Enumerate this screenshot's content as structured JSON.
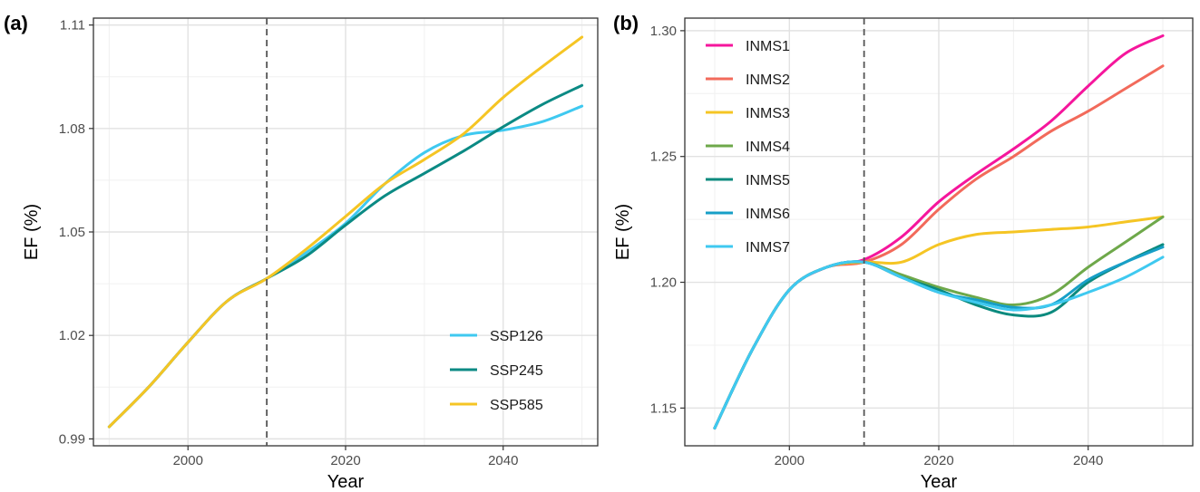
{
  "chart_data": [
    {
      "panel": "(a)",
      "type": "line",
      "xlabel": "Year",
      "ylabel": "EF (%)",
      "xlim": [
        1988,
        2052
      ],
      "ylim": [
        0.988,
        1.112
      ],
      "xticks": [
        2000,
        2020,
        2040
      ],
      "xtick_labels": [
        "2000",
        "2020",
        "2040"
      ],
      "yticks": [
        0.99,
        1.02,
        1.05,
        1.08,
        1.11
      ],
      "ytick_labels": [
        "0.99",
        "1.02",
        "1.05",
        "1.08",
        "1.11"
      ],
      "grid": true,
      "vline_x": 2010,
      "legend_position": "bottom-right",
      "series": [
        {
          "name": "SSP126",
          "color": "#3fc9f0",
          "x": [
            1990,
            1995,
            2000,
            2005,
            2010,
            2015,
            2020,
            2025,
            2030,
            2035,
            2040,
            2045,
            2050
          ],
          "y": [
            0.9935,
            1.005,
            1.018,
            1.03,
            1.0365,
            1.044,
            1.0525,
            1.064,
            1.073,
            1.078,
            1.0795,
            1.082,
            1.0865
          ]
        },
        {
          "name": "SSP245",
          "color": "#0b8a84",
          "x": [
            1990,
            1995,
            2000,
            2005,
            2010,
            2015,
            2020,
            2025,
            2030,
            2035,
            2040,
            2045,
            2050
          ],
          "y": [
            0.9935,
            1.005,
            1.018,
            1.03,
            1.0365,
            1.043,
            1.052,
            1.0605,
            1.067,
            1.0735,
            1.0805,
            1.087,
            1.0925
          ]
        },
        {
          "name": "SSP585",
          "color": "#f5c524",
          "x": [
            1990,
            1995,
            2000,
            2005,
            2010,
            2015,
            2020,
            2025,
            2030,
            2035,
            2040,
            2045,
            2050
          ],
          "y": [
            0.9935,
            1.005,
            1.018,
            1.03,
            1.0365,
            1.045,
            1.0545,
            1.064,
            1.071,
            1.0785,
            1.089,
            1.098,
            1.1065
          ]
        }
      ]
    },
    {
      "panel": "(b)",
      "type": "line",
      "xlabel": "Year",
      "ylabel": "EF (%)",
      "xlim": [
        1986,
        2054
      ],
      "ylim": [
        1.135,
        1.305
      ],
      "xticks": [
        2000,
        2020,
        2040
      ],
      "xtick_labels": [
        "2000",
        "2020",
        "2040"
      ],
      "yticks": [
        1.15,
        1.2,
        1.25,
        1.3
      ],
      "ytick_labels": [
        "1.15",
        "1.20",
        "1.25",
        "1.30"
      ],
      "grid": true,
      "vline_x": 2010,
      "legend_position": "top-left",
      "series": [
        {
          "name": "INMS1",
          "color": "#f5169c",
          "x": [
            1990,
            1995,
            2000,
            2005,
            2010,
            2015,
            2020,
            2025,
            2030,
            2035,
            2040,
            2045,
            2050
          ],
          "y": [
            1.142,
            1.173,
            1.197,
            1.206,
            1.209,
            1.218,
            1.232,
            1.243,
            1.253,
            1.264,
            1.278,
            1.291,
            1.298
          ]
        },
        {
          "name": "INMS2",
          "color": "#f26a5b",
          "x": [
            1990,
            1995,
            2000,
            2005,
            2010,
            2015,
            2020,
            2025,
            2030,
            2035,
            2040,
            2045,
            2050
          ],
          "y": [
            1.142,
            1.173,
            1.197,
            1.206,
            1.208,
            1.215,
            1.229,
            1.241,
            1.25,
            1.26,
            1.268,
            1.277,
            1.286
          ]
        },
        {
          "name": "INMS3",
          "color": "#f5c524",
          "x": [
            1990,
            1995,
            2000,
            2005,
            2010,
            2015,
            2020,
            2025,
            2030,
            2035,
            2040,
            2045,
            2050
          ],
          "y": [
            1.142,
            1.173,
            1.197,
            1.206,
            1.208,
            1.208,
            1.215,
            1.219,
            1.22,
            1.221,
            1.222,
            1.224,
            1.226
          ]
        },
        {
          "name": "INMS4",
          "color": "#6ea84a",
          "x": [
            1990,
            1995,
            2000,
            2005,
            2010,
            2015,
            2020,
            2025,
            2030,
            2035,
            2040,
            2045,
            2050
          ],
          "y": [
            1.142,
            1.173,
            1.197,
            1.206,
            1.208,
            1.203,
            1.198,
            1.194,
            1.191,
            1.195,
            1.206,
            1.216,
            1.226
          ]
        },
        {
          "name": "INMS5",
          "color": "#0b8a7e",
          "x": [
            1990,
            1995,
            2000,
            2005,
            2010,
            2015,
            2020,
            2025,
            2030,
            2035,
            2040,
            2045,
            2050
          ],
          "y": [
            1.142,
            1.173,
            1.197,
            1.206,
            1.208,
            1.202,
            1.197,
            1.191,
            1.187,
            1.188,
            1.2,
            1.208,
            1.215
          ]
        },
        {
          "name": "INMS6",
          "color": "#179fc7",
          "x": [
            1990,
            1995,
            2000,
            2005,
            2010,
            2015,
            2020,
            2025,
            2030,
            2035,
            2040,
            2045,
            2050
          ],
          "y": [
            1.142,
            1.173,
            1.197,
            1.206,
            1.208,
            1.202,
            1.196,
            1.193,
            1.19,
            1.191,
            1.201,
            1.208,
            1.214
          ]
        },
        {
          "name": "INMS7",
          "color": "#3fc9f0",
          "x": [
            1990,
            1995,
            2000,
            2005,
            2010,
            2015,
            2020,
            2025,
            2030,
            2035,
            2040,
            2045,
            2050
          ],
          "y": [
            1.142,
            1.173,
            1.197,
            1.206,
            1.208,
            1.202,
            1.196,
            1.192,
            1.189,
            1.191,
            1.196,
            1.202,
            1.21
          ]
        }
      ]
    }
  ]
}
